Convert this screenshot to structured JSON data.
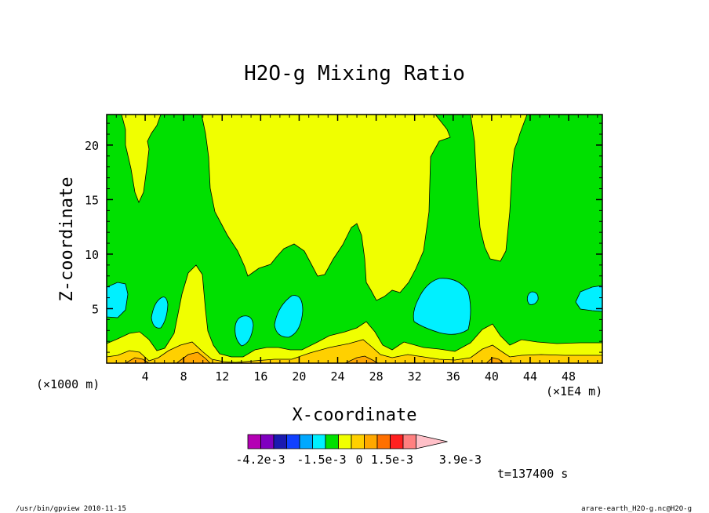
{
  "chart_data": {
    "type": "heatmap",
    "title": "H2O-g Mixing Ratio",
    "xlabel": "X-coordinate",
    "ylabel": "Z-coordinate",
    "x_scale_note": "(×1E4 m)",
    "y_scale_note": "(×1000 m)",
    "xlim": [
      0,
      51.5
    ],
    "ylim": [
      0,
      22.8
    ],
    "x_ticks": [
      4,
      8,
      12,
      16,
      20,
      24,
      28,
      32,
      36,
      40,
      44,
      48
    ],
    "y_ticks": [
      5,
      10,
      15,
      20
    ],
    "x_tick_labels": [
      "4",
      "8",
      "12",
      "16",
      "20",
      "24",
      "28",
      "32",
      "36",
      "40",
      "44",
      "48"
    ],
    "y_tick_labels": [
      "5",
      "10",
      "15",
      "20"
    ],
    "colorbar": {
      "colors": [
        "#b400b4",
        "#8000c0",
        "#1a1ab0",
        "#1040ff",
        "#00a8ff",
        "#00f0ff",
        "#00e000",
        "#f0ff00",
        "#ffd000",
        "#ffa800",
        "#ff7000",
        "#ff2020",
        "#ff8080",
        "#ffc0c8"
      ],
      "labels": [
        "-4.2e-3",
        "-1.5e-3",
        "0",
        "1.5e-3",
        "3.9e-3"
      ]
    },
    "time_label": "t=137400 s",
    "regions": {
      "background": "green",
      "yellow_high": [
        {
          "x_range": [
            2,
            5.6
          ],
          "z_min": 14.8,
          "note": "upper-left plume"
        },
        {
          "x_range": [
            9.9,
            33.5
          ],
          "z_min": 5.8,
          "note": "central high mixing-ratio region"
        },
        {
          "x_range": [
            37.5,
            42
          ],
          "z_min": 9.5,
          "note": "upper-right plume"
        }
      ],
      "cyan_low": [
        {
          "center": [
            1.5,
            5.8
          ],
          "note": "left edge"
        },
        {
          "center": [
            5.5,
            4.8
          ]
        },
        {
          "center": [
            14,
            2.9
          ]
        },
        {
          "center": [
            19,
            4.4
          ]
        },
        {
          "center": [
            34.5,
            5.0
          ],
          "note": "largest low region"
        },
        {
          "center": [
            43.6,
            6.0
          ]
        },
        {
          "center": [
            50.5,
            5.8
          ],
          "note": "right edge"
        }
      ],
      "near_surface": "yellow to orange layers below z≈2 (×1000 m)"
    }
  },
  "footer": {
    "left": "/usr/bin/gpview  2010-11-15",
    "right": "arare-earth_H2O-g.nc@H2O-g"
  }
}
